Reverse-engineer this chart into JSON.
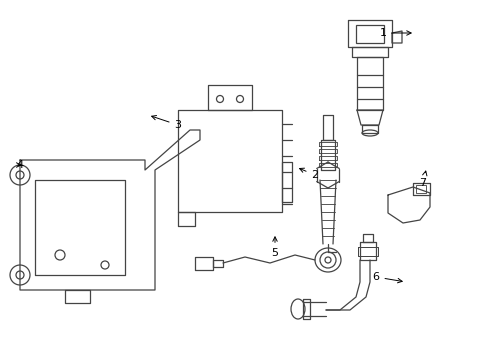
{
  "background_color": "#ffffff",
  "line_color": "#444444",
  "text_color": "#000000",
  "line_width": 0.9,
  "figsize": [
    4.89,
    3.6
  ],
  "dpi": 100,
  "xlim": [
    0,
    489
  ],
  "ylim": [
    0,
    360
  ]
}
